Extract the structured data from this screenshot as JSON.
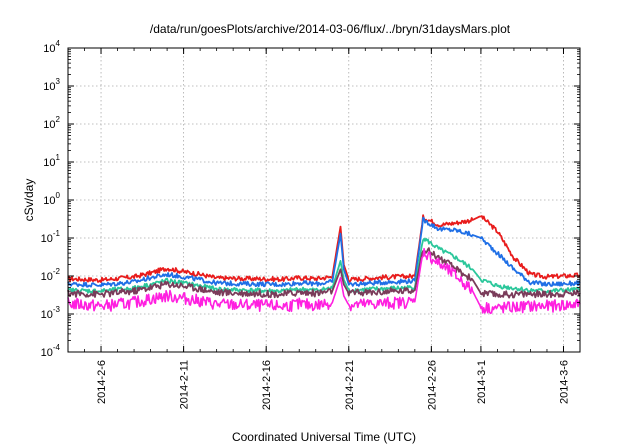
{
  "chart_data": {
    "type": "line",
    "title": "/data/run/goesPlots/archive/2014-03-06/flux/../bryn/31daysMars.plot",
    "xlabel": "Coordinated Universal Time (UTC)",
    "ylabel": "cSv/day",
    "yscale": "log",
    "ylim": [
      0.0001,
      10000
    ],
    "xlim": [
      "2014-02-04",
      "2014-03-07"
    ],
    "grid": true,
    "y_ticks": [
      {
        "base": "10",
        "exp": "-4",
        "value": 0.0001
      },
      {
        "base": "10",
        "exp": "-3",
        "value": 0.001
      },
      {
        "base": "10",
        "exp": "-2",
        "value": 0.01
      },
      {
        "base": "10",
        "exp": "-1",
        "value": 0.1
      },
      {
        "base": "10",
        "exp": "0",
        "value": 1
      },
      {
        "base": "10",
        "exp": "1",
        "value": 10
      },
      {
        "base": "10",
        "exp": "2",
        "value": 100
      },
      {
        "base": "10",
        "exp": "3",
        "value": 1000
      },
      {
        "base": "10",
        "exp": "4",
        "value": 10000
      }
    ],
    "x_ticks": [
      {
        "label": "2014-2-6",
        "date": "2014-02-06"
      },
      {
        "label": "2014-2-11",
        "date": "2014-02-11"
      },
      {
        "label": "2014-2-16",
        "date": "2014-02-16"
      },
      {
        "label": "2014-2-21",
        "date": "2014-02-21"
      },
      {
        "label": "2014-2-26",
        "date": "2014-02-26"
      },
      {
        "label": "2014-3-1",
        "date": "2014-03-01"
      },
      {
        "label": "2014-3-6",
        "date": "2014-03-06"
      }
    ],
    "series": [
      {
        "color": "#e81c1c",
        "points": [
          [
            "2014-02-04",
            0.0085
          ],
          [
            "2014-02-06",
            0.0078
          ],
          [
            "2014-02-08",
            0.0095
          ],
          [
            "2014-02-09",
            0.012
          ],
          [
            "2014-02-10",
            0.016
          ],
          [
            "2014-02-11",
            0.013
          ],
          [
            "2014-02-12",
            0.011
          ],
          [
            "2014-02-13",
            0.0088
          ],
          [
            "2014-02-15",
            0.0085
          ],
          [
            "2014-02-17",
            0.0082
          ],
          [
            "2014-02-18",
            0.009
          ],
          [
            "2014-02-19",
            0.0085
          ],
          [
            "2014-02-20",
            0.0095
          ],
          [
            "2014-02-20.5",
            0.2
          ],
          [
            "2014-02-20.7",
            0.02
          ],
          [
            "2014-02-21",
            0.008
          ],
          [
            "2014-02-23",
            0.0092
          ],
          [
            "2014-02-25",
            0.01
          ],
          [
            "2014-02-25.5",
            0.35
          ],
          [
            "2014-02-26.5",
            0.22
          ],
          [
            "2014-02-27.5",
            0.25
          ],
          [
            "2014-02-28.5",
            0.3
          ],
          [
            "2014-03-01",
            0.38
          ],
          [
            "2014-03-02",
            0.15
          ],
          [
            "2014-03-03",
            0.03
          ],
          [
            "2014-03-04",
            0.011
          ],
          [
            "2014-03-05",
            0.0095
          ],
          [
            "2014-03-07",
            0.0105
          ]
        ]
      },
      {
        "color": "#1f6fe6",
        "points": [
          [
            "2014-02-04",
            0.0062
          ],
          [
            "2014-02-06",
            0.0058
          ],
          [
            "2014-02-08",
            0.007
          ],
          [
            "2014-02-09",
            0.009
          ],
          [
            "2014-02-10",
            0.011
          ],
          [
            "2014-02-11",
            0.0095
          ],
          [
            "2014-02-12",
            0.008
          ],
          [
            "2014-02-13",
            0.0065
          ],
          [
            "2014-02-15",
            0.0062
          ],
          [
            "2014-02-17",
            0.006
          ],
          [
            "2014-02-18",
            0.0066
          ],
          [
            "2014-02-19",
            0.0062
          ],
          [
            "2014-02-20",
            0.007
          ],
          [
            "2014-02-20.5",
            0.13
          ],
          [
            "2014-02-20.7",
            0.015
          ],
          [
            "2014-02-21",
            0.006
          ],
          [
            "2014-02-23",
            0.0068
          ],
          [
            "2014-02-25",
            0.0075
          ],
          [
            "2014-02-25.5",
            0.3
          ],
          [
            "2014-02-26.5",
            0.17
          ],
          [
            "2014-02-27.5",
            0.16
          ],
          [
            "2014-02-28.5",
            0.12
          ],
          [
            "2014-03-01",
            0.1
          ],
          [
            "2014-03-02",
            0.04
          ],
          [
            "2014-03-03",
            0.015
          ],
          [
            "2014-03-04",
            0.0068
          ],
          [
            "2014-03-05",
            0.006
          ],
          [
            "2014-03-07",
            0.0065
          ]
        ]
      },
      {
        "color": "#2bc79b",
        "points": [
          [
            "2014-02-04",
            0.0042
          ],
          [
            "2014-02-06",
            0.004
          ],
          [
            "2014-02-08",
            0.0048
          ],
          [
            "2014-02-09",
            0.006
          ],
          [
            "2014-02-10",
            0.0075
          ],
          [
            "2014-02-11",
            0.0065
          ],
          [
            "2014-02-12",
            0.0055
          ],
          [
            "2014-02-13",
            0.0045
          ],
          [
            "2014-02-15",
            0.0042
          ],
          [
            "2014-02-17",
            0.004
          ],
          [
            "2014-02-18",
            0.0045
          ],
          [
            "2014-02-19",
            0.0042
          ],
          [
            "2014-02-20",
            0.0048
          ],
          [
            "2014-02-20.5",
            0.025
          ],
          [
            "2014-02-20.7",
            0.008
          ],
          [
            "2014-02-21",
            0.0042
          ],
          [
            "2014-02-23",
            0.0046
          ],
          [
            "2014-02-25",
            0.005
          ],
          [
            "2014-02-25.5",
            0.1
          ],
          [
            "2014-02-26.5",
            0.05
          ],
          [
            "2014-02-27.5",
            0.03
          ],
          [
            "2014-02-28.5",
            0.015
          ],
          [
            "2014-03-01",
            0.008
          ],
          [
            "2014-03-02",
            0.0055
          ],
          [
            "2014-03-03",
            0.0048
          ],
          [
            "2014-03-04",
            0.0042
          ],
          [
            "2014-03-05",
            0.004
          ],
          [
            "2014-03-07",
            0.0044
          ]
        ]
      },
      {
        "color": "#7a3c5a",
        "points": [
          [
            "2014-02-04",
            0.0035
          ],
          [
            "2014-02-06",
            0.0033
          ],
          [
            "2014-02-08",
            0.004
          ],
          [
            "2014-02-09",
            0.005
          ],
          [
            "2014-02-10",
            0.0062
          ],
          [
            "2014-02-11",
            0.0055
          ],
          [
            "2014-02-12",
            0.0046
          ],
          [
            "2014-02-13",
            0.0037
          ],
          [
            "2014-02-15",
            0.0035
          ],
          [
            "2014-02-17",
            0.0033
          ],
          [
            "2014-02-18",
            0.0037
          ],
          [
            "2014-02-19",
            0.0035
          ],
          [
            "2014-02-20",
            0.004
          ],
          [
            "2014-02-20.5",
            0.015
          ],
          [
            "2014-02-20.7",
            0.006
          ],
          [
            "2014-02-21",
            0.0035
          ],
          [
            "2014-02-23",
            0.0038
          ],
          [
            "2014-02-25",
            0.0042
          ],
          [
            "2014-02-25.5",
            0.055
          ],
          [
            "2014-02-26.5",
            0.03
          ],
          [
            "2014-02-27.5",
            0.015
          ],
          [
            "2014-02-28.5",
            0.008
          ],
          [
            "2014-03-01",
            0.0035
          ],
          [
            "2014-03-02",
            0.0032
          ],
          [
            "2014-03-03",
            0.0033
          ],
          [
            "2014-03-04",
            0.0034
          ],
          [
            "2014-03-05",
            0.0033
          ],
          [
            "2014-03-07",
            0.0036
          ]
        ]
      },
      {
        "color": "#ff1fe0",
        "points": [
          [
            "2014-02-04",
            0.0019
          ],
          [
            "2014-02-06",
            0.0016
          ],
          [
            "2014-02-08",
            0.002
          ],
          [
            "2014-02-09",
            0.0025
          ],
          [
            "2014-02-10",
            0.003
          ],
          [
            "2014-02-11",
            0.0026
          ],
          [
            "2014-02-12",
            0.0022
          ],
          [
            "2014-02-13",
            0.0018
          ],
          [
            "2014-02-15",
            0.0017
          ],
          [
            "2014-02-17",
            0.0016
          ],
          [
            "2014-02-18",
            0.0018
          ],
          [
            "2014-02-19",
            0.0017
          ],
          [
            "2014-02-20",
            0.002
          ],
          [
            "2014-02-20.5",
            0.009
          ],
          [
            "2014-02-20.7",
            0.003
          ],
          [
            "2014-02-21",
            0.0017
          ],
          [
            "2014-02-23",
            0.0019
          ],
          [
            "2014-02-25",
            0.0021
          ],
          [
            "2014-02-25.5",
            0.045
          ],
          [
            "2014-02-26.5",
            0.02
          ],
          [
            "2014-02-27.5",
            0.01
          ],
          [
            "2014-02-28.5",
            0.004
          ],
          [
            "2014-03-01",
            0.0015
          ],
          [
            "2014-03-02",
            0.0014
          ],
          [
            "2014-03-03",
            0.0015
          ],
          [
            "2014-03-04",
            0.0016
          ],
          [
            "2014-03-05",
            0.0016
          ],
          [
            "2014-03-07",
            0.0018
          ]
        ]
      }
    ]
  }
}
